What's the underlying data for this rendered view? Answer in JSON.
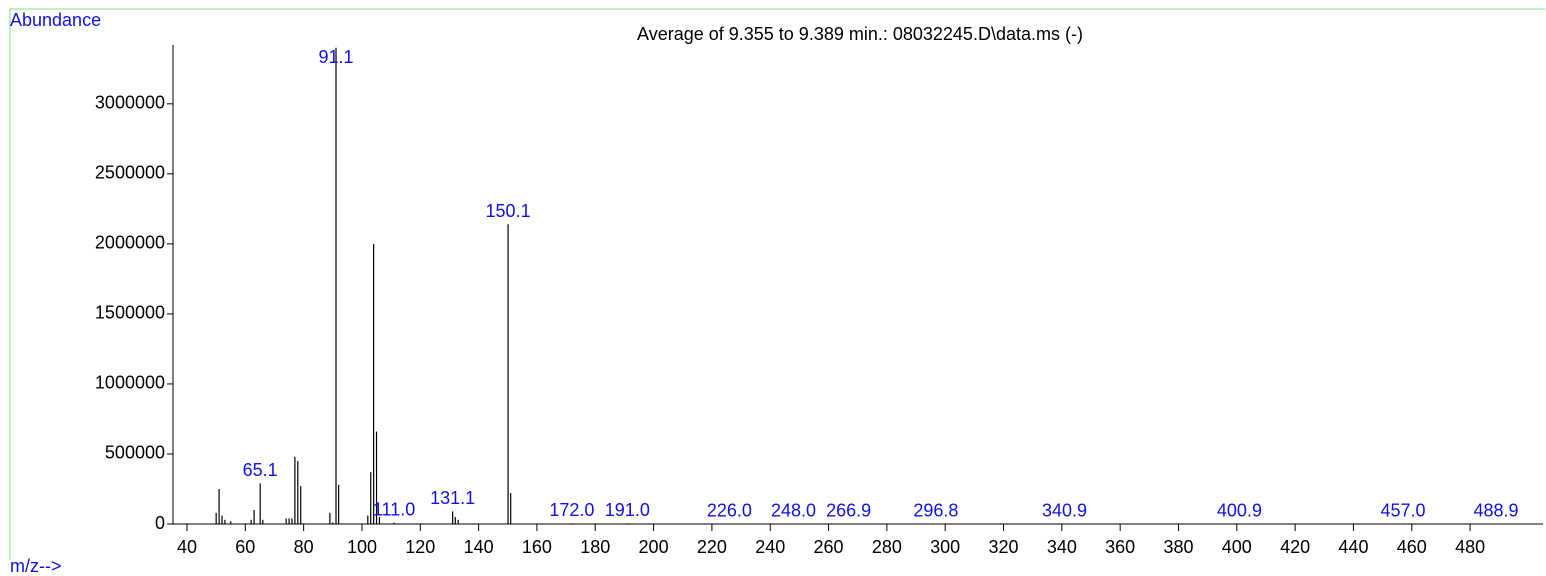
{
  "chart_data": {
    "type": "spectrum",
    "title": "Average of 9.355 to 9.389 min.: 08032245.D\\data.ms (-)",
    "y_label": "Abundance",
    "x_label": "m/z-->",
    "color": "#000000",
    "label_color": "#1010e0",
    "x": [
      50,
      51,
      52,
      53,
      55,
      62,
      63,
      65.1,
      66,
      74,
      75,
      76,
      77,
      78,
      79,
      89,
      90,
      91.1,
      92,
      102,
      103,
      104,
      105,
      106,
      111.0,
      131.1,
      132,
      133,
      150.1,
      151,
      172.0,
      191.0,
      226.0,
      248.0,
      266.9,
      296.8,
      340.9,
      400.9,
      457.0,
      488.9
    ],
    "values": [
      80000,
      250000,
      60000,
      30000,
      20000,
      30000,
      100000,
      290000,
      30000,
      40000,
      40000,
      40000,
      480000,
      450000,
      270000,
      80000,
      10000,
      3400000,
      280000,
      60000,
      370000,
      2000000,
      660000,
      50000,
      10000,
      90000,
      50000,
      30000,
      2140000,
      220000,
      5000,
      5000,
      3000,
      3000,
      3000,
      3000,
      3000,
      3000,
      3000,
      3000
    ],
    "x_labels": [
      null,
      null,
      null,
      null,
      null,
      null,
      null,
      "65.1",
      null,
      null,
      null,
      null,
      null,
      null,
      null,
      null,
      null,
      "91.1",
      null,
      null,
      null,
      null,
      null,
      null,
      "111.0",
      "131.1",
      null,
      null,
      "150.1",
      null,
      "172.0",
      "191.0",
      "226.0",
      "248.0",
      "266.9",
      "296.8",
      "340.9",
      "400.9",
      "457.0",
      "488.9"
    ],
    "xlim": [
      35.2,
      505
    ],
    "xticks": [
      40,
      60,
      80,
      100,
      120,
      140,
      160,
      180,
      200,
      220,
      240,
      260,
      280,
      300,
      320,
      340,
      360,
      380,
      400,
      420,
      440,
      460,
      480
    ],
    "ylim": [
      0,
      3420000
    ],
    "yticks": [
      0,
      500000,
      1000000,
      1500000,
      2000000,
      2500000,
      3000000
    ]
  }
}
